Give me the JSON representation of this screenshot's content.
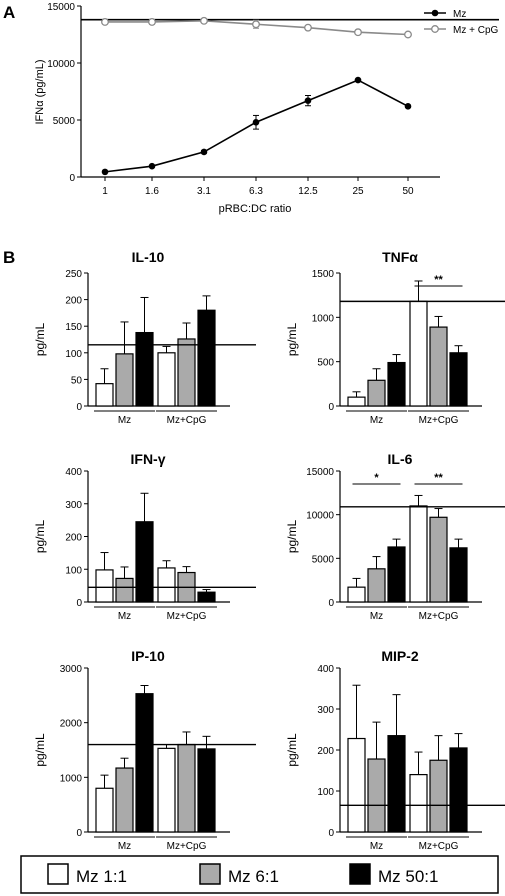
{
  "panel_labels": {
    "a": "A",
    "b": "B"
  },
  "legend_bottom": [
    "Mz 1:1",
    "Mz 6:1",
    "Mz 50:1"
  ],
  "colors": {
    "series_fills": [
      "#ffffff",
      "#aaaaaa",
      "#000000"
    ],
    "mz": "#000000",
    "mz_cpg": "#8a8a8a"
  },
  "chart_data": [
    {
      "type": "line",
      "panel": "A",
      "xlabel": "pRBC:DC ratio",
      "ylabel": "IFNα (pg/mL)",
      "categories": [
        "1",
        "1.6",
        "3.1",
        "6.3",
        "12.5",
        "25",
        "50"
      ],
      "ylim": [
        0,
        15000
      ],
      "yticks": [
        "0",
        "5000",
        "10000",
        "15000"
      ],
      "reference_line": 13800,
      "legend_position": "top-right",
      "series": [
        {
          "name": "Mz",
          "values": [
            450,
            950,
            2200,
            4800,
            6700,
            8500,
            6200
          ],
          "errors": [
            0,
            80,
            120,
            600,
            450,
            100,
            100
          ]
        },
        {
          "name": "Mz + CpG",
          "values": [
            13600,
            13600,
            13700,
            13400,
            13100,
            12700,
            12500
          ],
          "errors": [
            100,
            200,
            100,
            350,
            100,
            100,
            100
          ]
        }
      ]
    },
    {
      "type": "bar",
      "title": "IL-10",
      "ylabel": "pg/mL",
      "groups": [
        "Mz",
        "Mz+CpG"
      ],
      "ylim": [
        0,
        250
      ],
      "yticks": [
        "0",
        "50",
        "100",
        "150",
        "200",
        "250"
      ],
      "reference_line": 115,
      "significance": [],
      "series": [
        {
          "name": "Mz 1:1",
          "values": [
            42,
            100
          ],
          "errors": [
            28,
            12
          ]
        },
        {
          "name": "Mz 6:1",
          "values": [
            98,
            126
          ],
          "errors": [
            60,
            30
          ]
        },
        {
          "name": "Mz 50:1",
          "values": [
            138,
            180
          ],
          "errors": [
            66,
            27
          ]
        }
      ]
    },
    {
      "type": "bar",
      "title": "TNFα",
      "ylabel": "pg/mL",
      "groups": [
        "Mz",
        "Mz+CpG"
      ],
      "ylim": [
        0,
        1500
      ],
      "yticks": [
        "0",
        "500",
        "1000",
        "1500"
      ],
      "reference_line": 1180,
      "significance": [
        {
          "group": 1,
          "from": 0,
          "to": 2,
          "text": "**"
        }
      ],
      "series": [
        {
          "name": "Mz 1:1",
          "values": [
            100,
            1180
          ],
          "errors": [
            60,
            230
          ]
        },
        {
          "name": "Mz 6:1",
          "values": [
            290,
            890
          ],
          "errors": [
            130,
            120
          ]
        },
        {
          "name": "Mz 50:1",
          "values": [
            490,
            600
          ],
          "errors": [
            90,
            80
          ]
        }
      ]
    },
    {
      "type": "bar",
      "title": "IFN-γ",
      "ylabel": "pg/mL",
      "groups": [
        "Mz",
        "Mz+CpG"
      ],
      "ylim": [
        0,
        400
      ],
      "yticks": [
        "0",
        "100",
        "200",
        "300",
        "400"
      ],
      "reference_line": 45,
      "significance": [],
      "series": [
        {
          "name": "Mz 1:1",
          "values": [
            98,
            104
          ],
          "errors": [
            53,
            22
          ]
        },
        {
          "name": "Mz 6:1",
          "values": [
            72,
            90
          ],
          "errors": [
            35,
            18
          ]
        },
        {
          "name": "Mz 50:1",
          "values": [
            245,
            30
          ],
          "errors": [
            87,
            8
          ]
        }
      ]
    },
    {
      "type": "bar",
      "title": "IL-6",
      "ylabel": "pg/mL",
      "groups": [
        "Mz",
        "Mz+CpG"
      ],
      "ylim": [
        0,
        15000
      ],
      "yticks": [
        "0",
        "5000",
        "10000",
        "15000"
      ],
      "reference_line": 10900,
      "significance": [
        {
          "group": 0,
          "from": 0,
          "to": 2,
          "text": "*"
        },
        {
          "group": 1,
          "from": 0,
          "to": 2,
          "text": "**"
        }
      ],
      "series": [
        {
          "name": "Mz 1:1",
          "values": [
            1700,
            11000
          ],
          "errors": [
            1000,
            1200
          ]
        },
        {
          "name": "Mz 6:1",
          "values": [
            3800,
            9700
          ],
          "errors": [
            1400,
            1000
          ]
        },
        {
          "name": "Mz 50:1",
          "values": [
            6300,
            6200
          ],
          "errors": [
            900,
            1000
          ]
        }
      ]
    },
    {
      "type": "bar",
      "title": "IP-10",
      "ylabel": "pg/mL",
      "groups": [
        "Mz",
        "Mz+CpG"
      ],
      "ylim": [
        0,
        3000
      ],
      "yticks": [
        "0",
        "1000",
        "2000",
        "3000"
      ],
      "reference_line": 1600,
      "significance": [],
      "series": [
        {
          "name": "Mz 1:1",
          "values": [
            800,
            1530
          ],
          "errors": [
            240,
            70
          ]
        },
        {
          "name": "Mz 6:1",
          "values": [
            1170,
            1600
          ],
          "errors": [
            180,
            230
          ]
        },
        {
          "name": "Mz 50:1",
          "values": [
            2530,
            1520
          ],
          "errors": [
            150,
            230
          ]
        }
      ]
    },
    {
      "type": "bar",
      "title": "MIP-2",
      "ylabel": "pg/mL",
      "groups": [
        "Mz",
        "Mz+CpG"
      ],
      "ylim": [
        0,
        400
      ],
      "yticks": [
        "0",
        "100",
        "200",
        "300",
        "400"
      ],
      "reference_line": 65,
      "significance": [],
      "series": [
        {
          "name": "Mz 1:1",
          "values": [
            228,
            140
          ],
          "errors": [
            130,
            55
          ]
        },
        {
          "name": "Mz 6:1",
          "values": [
            178,
            175
          ],
          "errors": [
            90,
            60
          ]
        },
        {
          "name": "Mz 50:1",
          "values": [
            235,
            205
          ],
          "errors": [
            100,
            35
          ]
        }
      ]
    }
  ]
}
